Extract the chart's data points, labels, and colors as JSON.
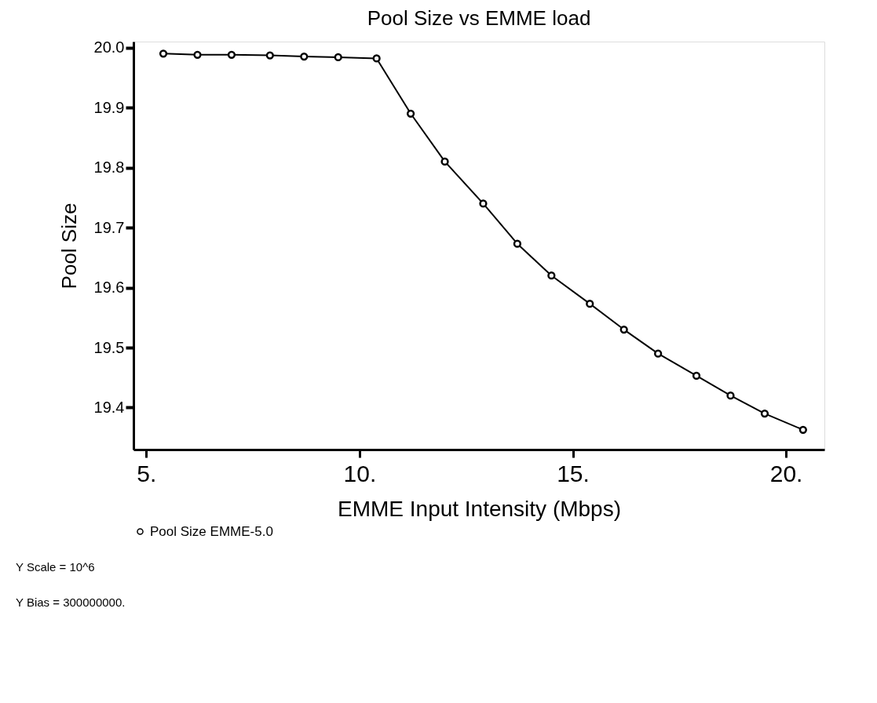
{
  "chart_data": {
    "type": "line",
    "title": "Pool Size vs EMME load",
    "xlabel": "EMME Input Intensity (Mbps)",
    "ylabel": "Pool Size",
    "x": [
      5.4,
      6.2,
      7.0,
      7.9,
      8.7,
      9.5,
      10.4,
      11.2,
      12.0,
      12.9,
      13.7,
      14.5,
      15.4,
      16.2,
      17.0,
      17.9,
      18.7,
      19.5,
      20.4
    ],
    "series": [
      {
        "name": "Pool Size EMME-5.0",
        "color": "#000000",
        "values": [
          19.99,
          19.988,
          19.988,
          19.987,
          19.985,
          19.984,
          19.982,
          19.89,
          19.81,
          19.74,
          19.673,
          19.62,
          19.573,
          19.53,
          19.49,
          19.453,
          19.42,
          19.39,
          19.363
        ]
      }
    ],
    "xlim": [
      4.7,
      20.9
    ],
    "ylim": [
      19.33,
      20.01
    ],
    "xticks": [
      {
        "value": 5,
        "label": "5."
      },
      {
        "value": 10,
        "label": "10."
      },
      {
        "value": 15,
        "label": "15."
      },
      {
        "value": 20,
        "label": "20."
      }
    ],
    "yticks": [
      {
        "value": 19.4,
        "label": "19.4"
      },
      {
        "value": 19.5,
        "label": "19.5"
      },
      {
        "value": 19.6,
        "label": "19.6"
      },
      {
        "value": 19.7,
        "label": "19.7"
      },
      {
        "value": 19.8,
        "label": "19.8"
      },
      {
        "value": 19.9,
        "label": "19.9"
      },
      {
        "value": 20,
        "label": "20.0"
      }
    ],
    "marker": "circle",
    "line_style": "solid",
    "grid": false,
    "legend": "bottom",
    "annotations": [
      "Y Scale =   10^6",
      "Y Bias = 300000000."
    ]
  }
}
